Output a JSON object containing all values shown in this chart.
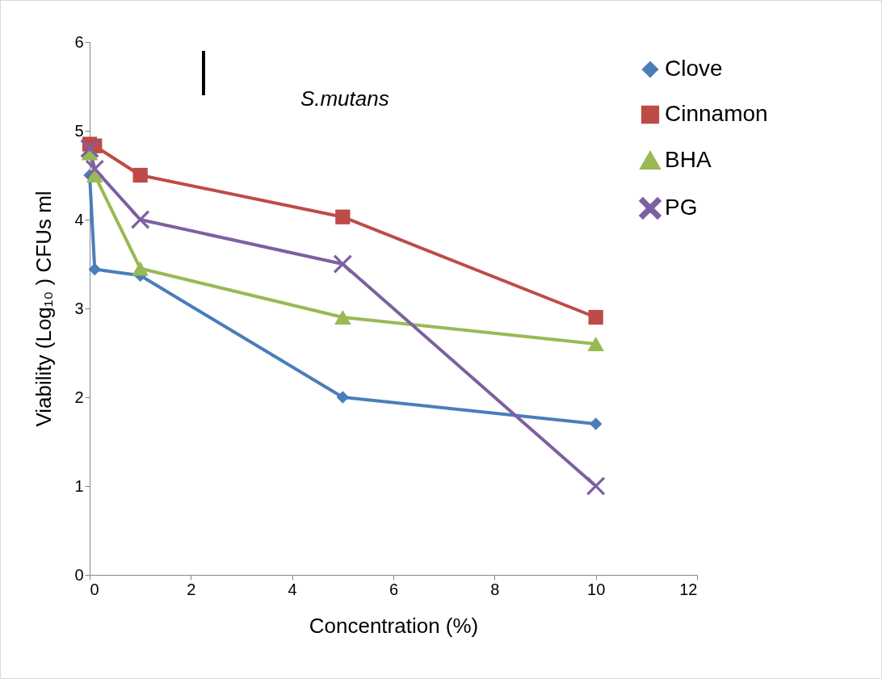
{
  "chart_data": {
    "type": "line",
    "title": "S.mutans",
    "xlabel": "Concentration (%)",
    "ylabel": "Viability (Log₁₀ ) CFUs ml",
    "xlim": [
      0,
      12
    ],
    "xticks": [
      0,
      2,
      4,
      6,
      8,
      10,
      12
    ],
    "ylim": [
      0,
      6
    ],
    "yticks": [
      0,
      1,
      2,
      3,
      4,
      5,
      6
    ],
    "grid": false,
    "legend": "top right",
    "line_style": "solid",
    "series": [
      {
        "name": "Clove",
        "color": "#4a7ebb",
        "marker": "diamond",
        "x": [
          0,
          0.1,
          1,
          5,
          10
        ],
        "values": [
          4.5,
          3.44,
          3.37,
          2.0,
          1.7
        ]
      },
      {
        "name": "Cinnamon",
        "color": "#be4b48",
        "marker": "square",
        "x": [
          0,
          0.1,
          1,
          5,
          10
        ],
        "values": [
          4.85,
          4.83,
          4.5,
          4.03,
          2.9
        ]
      },
      {
        "name": "BHA",
        "color": "#98b954",
        "marker": "triangle",
        "x": [
          0,
          0.1,
          1,
          5,
          10
        ],
        "values": [
          4.75,
          4.5,
          3.45,
          2.9,
          2.6
        ]
      },
      {
        "name": "PG",
        "color": "#7d60a0",
        "marker": "cross",
        "x": [
          0,
          0.1,
          1,
          5,
          10
        ],
        "values": [
          4.8,
          4.57,
          4.0,
          3.5,
          1.0
        ]
      }
    ]
  }
}
